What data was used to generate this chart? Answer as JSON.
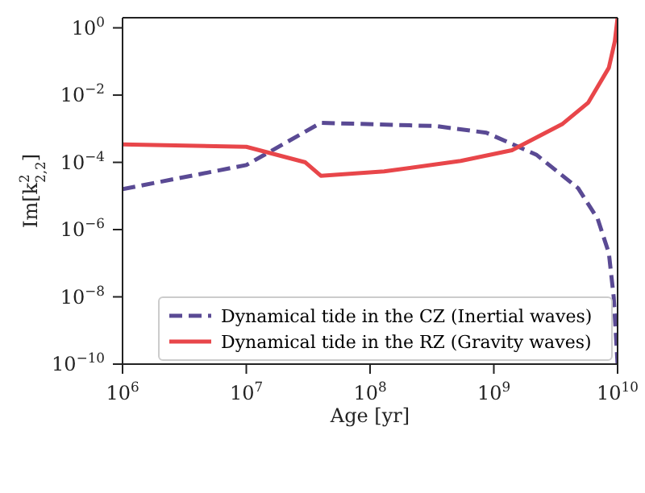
{
  "chart_data": {
    "type": "line",
    "xlabel": "Age [yr]",
    "ylabel": "Im[k$^{2}$$_{2,2}$]",
    "log": "xy",
    "grid": false,
    "legend": "bottom right",
    "marker": "none",
    "xlim": [
      1000000,
      10000000000
    ],
    "ylim": [
      1e-10,
      2
    ],
    "xticks": [
      {
        "value": 1000000,
        "label": "10$^{6}$"
      },
      {
        "value": 10000000,
        "label": "10$^{7}$"
      },
      {
        "value": 100000000,
        "label": "10$^{8}$"
      },
      {
        "value": 1000000000,
        "label": "10$^{9}$"
      },
      {
        "value": 10000000000,
        "label": "10$^{10}$"
      }
    ],
    "yticks": [
      {
        "value": 1e-10,
        "label": "10$^{−10}$"
      },
      {
        "value": 1e-08,
        "label": "10$^{−8}$"
      },
      {
        "value": 1e-06,
        "label": "10$^{−6}$"
      },
      {
        "value": 0.0001,
        "label": "10$^{−4}$"
      },
      {
        "value": 0.01,
        "label": "10$^{−2}$"
      },
      {
        "value": 1,
        "label": "10$^{0}$"
      }
    ],
    "series": [
      {
        "name": "Dynamical tide in the CZ (Inertial waves)",
        "color": "#5a4a94",
        "line_style": "dashed",
        "x": [
          1000000,
          10000000,
          40000000,
          340000000,
          870000000,
          2200000000,
          4800000000,
          6900000000,
          8500000000,
          9300000000,
          10000000000
        ],
        "values": [
          1.6e-05,
          8.3e-05,
          0.0015,
          0.0012,
          0.00076,
          0.00017,
          1.7e-05,
          2.1e-06,
          2e-07,
          1e-08,
          1e-10
        ]
      },
      {
        "name": "Dynamical tide in the RZ (Gravity waves)",
        "color": "#e8464a",
        "line_style": "solid",
        "x": [
          1000000,
          10000000,
          30000000,
          40000000,
          130000000,
          540000000,
          1400000000,
          3600000000,
          5800000000,
          8500000000,
          9500000000,
          10000000000
        ],
        "values": [
          0.00034,
          0.00029,
          0.0001,
          4e-05,
          5.4e-05,
          0.00011,
          0.00023,
          0.0014,
          0.006,
          0.065,
          0.4,
          2
        ]
      }
    ]
  }
}
